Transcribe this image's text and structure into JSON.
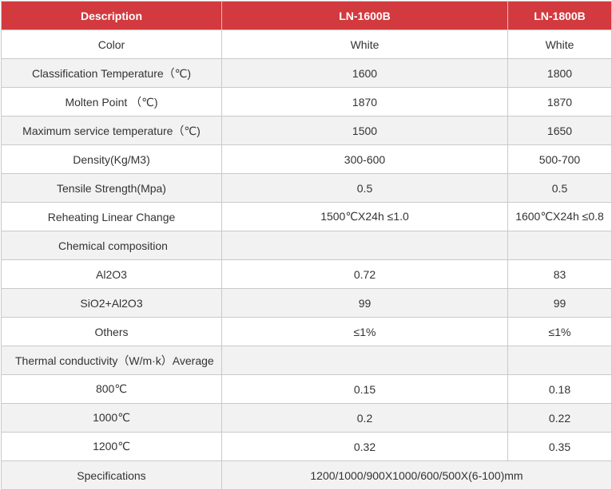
{
  "header": {
    "description": "Description",
    "col1": "LN-1600B",
    "col2": "LN-1800B"
  },
  "rows": [
    {
      "label": "Color",
      "v1": "White",
      "v2": "White"
    },
    {
      "label": "Classification Temperature（℃)",
      "v1": "1600",
      "v2": "1800"
    },
    {
      "label": "Molten Point （℃)",
      "v1": "1870",
      "v2": "1870"
    },
    {
      "label": "Maximum service temperature（℃)",
      "v1": "1500",
      "v2": "1650"
    },
    {
      "label": "Density(Kg/M3)",
      "v1": "300-600",
      "v2": "500-700"
    },
    {
      "label": "Tensile Strength(Mpa)",
      "v1": "0.5",
      "v2": "0.5"
    },
    {
      "label": "Reheating Linear Change",
      "v1": "1500℃X24h ≤1.0",
      "v2": "1600℃X24h ≤0.8"
    },
    {
      "label": "Chemical composition",
      "v1": "",
      "v2": ""
    },
    {
      "label": "Al2O3",
      "v1": "0.72",
      "v2": "83"
    },
    {
      "label": "SiO2+Al2O3",
      "v1": "99",
      "v2": "99"
    },
    {
      "label": "Others",
      "v1": "≤1%",
      "v2": "≤1%"
    },
    {
      "label": "Thermal conductivity（W/m·k）Average",
      "v1": "",
      "v2": ""
    },
    {
      "label": "800℃",
      "v1": "0.15",
      "v2": "0.18"
    },
    {
      "label": "1000℃",
      "v1": "0.2",
      "v2": "0.22"
    },
    {
      "label": "1200℃",
      "v1": "0.32",
      "v2": "0.35"
    }
  ],
  "specifications": {
    "label": "Specifications",
    "value": "1200/1000/900X1000/600/500X(6-100)mm"
  }
}
